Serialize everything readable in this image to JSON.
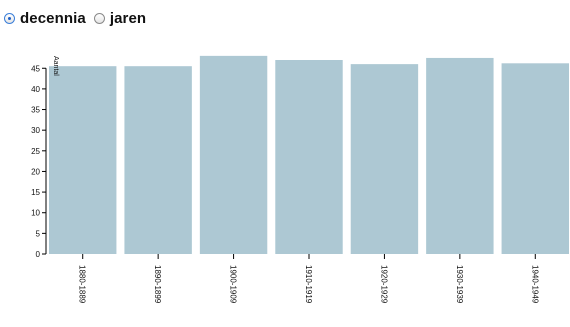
{
  "controls": {
    "options": [
      {
        "label": "decennia",
        "checked": true
      },
      {
        "label": "jaren",
        "checked": false
      }
    ]
  },
  "chart_data": {
    "type": "bar",
    "categories": [
      "1880-1889",
      "1890-1899",
      "1900-1909",
      "1910-1919",
      "1920-1929",
      "1930-1939",
      "1940-1949"
    ],
    "values": [
      45.5,
      45.5,
      48,
      47,
      46,
      47.5,
      46.2
    ],
    "ylabel": "Aantal",
    "ylim": [
      0,
      47
    ],
    "yticks": [
      0,
      5,
      10,
      15,
      20,
      25,
      30,
      35,
      40,
      45
    ],
    "bar_color": "#adc8d3",
    "grid": false
  }
}
